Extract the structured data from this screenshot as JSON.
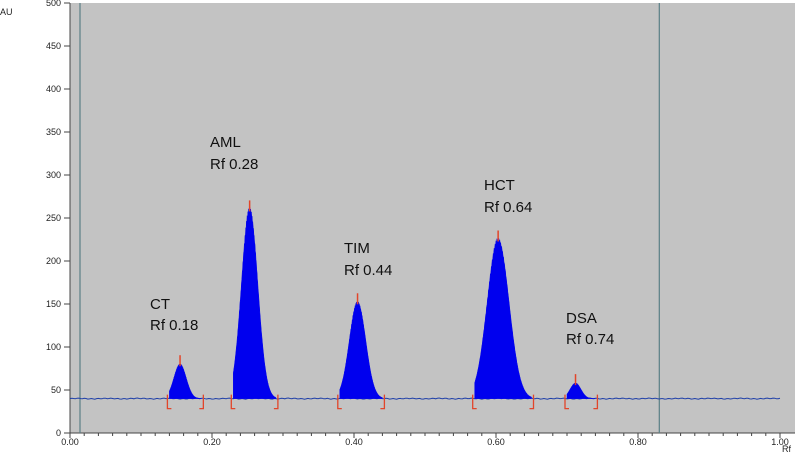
{
  "chart_data": {
    "type": "line",
    "xlabel": "Rf",
    "ylabel": "AU",
    "xlim": [
      0.0,
      1.0
    ],
    "ylim": [
      0,
      500
    ],
    "x_ticks": [
      "0.00",
      "0.20",
      "0.40",
      "0.60",
      "0.80",
      "1.00"
    ],
    "y_ticks": [
      "0",
      "50",
      "100",
      "150",
      "200",
      "250",
      "300",
      "350",
      "400",
      "450",
      "500"
    ],
    "baseline": 40,
    "front_line_rf": 0.83,
    "peaks": [
      {
        "label": "CT",
        "rf_text": "Rf 0.18",
        "center": 0.155,
        "height": 80,
        "start": 0.14,
        "end": 0.185
      },
      {
        "label": "AML",
        "rf_text": "Rf 0.28",
        "center": 0.253,
        "height": 260,
        "start": 0.23,
        "end": 0.29
      },
      {
        "label": "TIM",
        "rf_text": "Rf 0.44",
        "center": 0.405,
        "height": 152,
        "start": 0.38,
        "end": 0.44
      },
      {
        "label": "HCT",
        "rf_text": "Rf 0.64",
        "center": 0.603,
        "height": 225,
        "start": 0.57,
        "end": 0.65
      },
      {
        "label": "DSA",
        "rf_text": "Rf 0.74",
        "center": 0.712,
        "height": 58,
        "start": 0.7,
        "end": 0.74
      }
    ],
    "colors": {
      "plot_background": "#c3c3c3",
      "peak_fill": "#0000ee",
      "baseline": "#1f3fa8",
      "marker": "#e2452a",
      "front_line": "#5a7f86"
    }
  },
  "labels": {
    "peak_names": [
      "CT",
      "AML",
      "TIM",
      "HCT",
      "DSA"
    ],
    "peak_rf": [
      "Rf 0.18",
      "Rf 0.28",
      "Rf 0.44",
      "Rf 0.64",
      "Rf 0.74"
    ]
  }
}
